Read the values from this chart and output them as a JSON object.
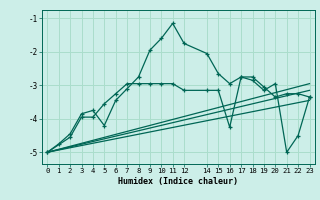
{
  "title": "",
  "xlabel": "Humidex (Indice chaleur)",
  "background_color": "#cceee8",
  "grid_color": "#aaddcc",
  "line_color": "#006655",
  "xlim": [
    -0.5,
    23.5
  ],
  "ylim": [
    -5.35,
    -0.75
  ],
  "yticks": [
    -5,
    -4,
    -3,
    -2,
    -1
  ],
  "ytick_labels": [
    "-5",
    "-4",
    "-3",
    "-2",
    "-1"
  ],
  "xtick_positions": [
    0,
    1,
    2,
    3,
    4,
    5,
    6,
    7,
    8,
    9,
    10,
    11,
    12,
    14,
    15,
    16,
    17,
    18,
    19,
    20,
    21,
    22,
    23
  ],
  "xtick_labels": [
    "0",
    "1",
    "2",
    "3",
    "4",
    "5",
    "6",
    "7",
    "8",
    "9",
    "10",
    "11",
    "12",
    "14",
    "15",
    "16",
    "17",
    "18",
    "19",
    "20",
    "21",
    "22",
    "23"
  ],
  "series": [
    {
      "x": [
        0,
        1,
        2,
        3,
        4,
        5,
        6,
        7,
        8,
        9,
        10,
        11,
        12,
        14,
        15,
        16,
        17,
        18,
        19,
        20,
        21,
        22,
        23
      ],
      "y": [
        -5.0,
        -4.75,
        -4.45,
        -3.85,
        -3.75,
        -4.2,
        -3.45,
        -3.1,
        -2.75,
        -1.95,
        -1.6,
        -1.15,
        -1.75,
        -2.05,
        -2.65,
        -2.95,
        -2.75,
        -2.75,
        -3.05,
        -3.35,
        -3.25,
        -3.25,
        -3.35
      ],
      "marker": true
    },
    {
      "x": [
        0,
        2,
        3,
        4,
        5,
        6,
        7,
        8,
        9,
        10,
        11,
        12,
        14,
        15,
        16,
        17,
        18,
        19,
        20,
        21,
        22,
        23
      ],
      "y": [
        -5.0,
        -4.55,
        -3.95,
        -3.95,
        -3.55,
        -3.25,
        -2.95,
        -2.95,
        -2.95,
        -2.95,
        -2.95,
        -3.15,
        -3.15,
        -3.15,
        -4.25,
        -2.75,
        -2.85,
        -3.15,
        -2.95,
        -5.0,
        -4.5,
        -3.35
      ],
      "marker": true
    },
    {
      "x": [
        0,
        23
      ],
      "y": [
        -5.0,
        -3.15
      ],
      "marker": false
    },
    {
      "x": [
        0,
        23
      ],
      "y": [
        -5.0,
        -2.95
      ],
      "marker": false
    },
    {
      "x": [
        0,
        23
      ],
      "y": [
        -5.0,
        -3.45
      ],
      "marker": false
    }
  ]
}
